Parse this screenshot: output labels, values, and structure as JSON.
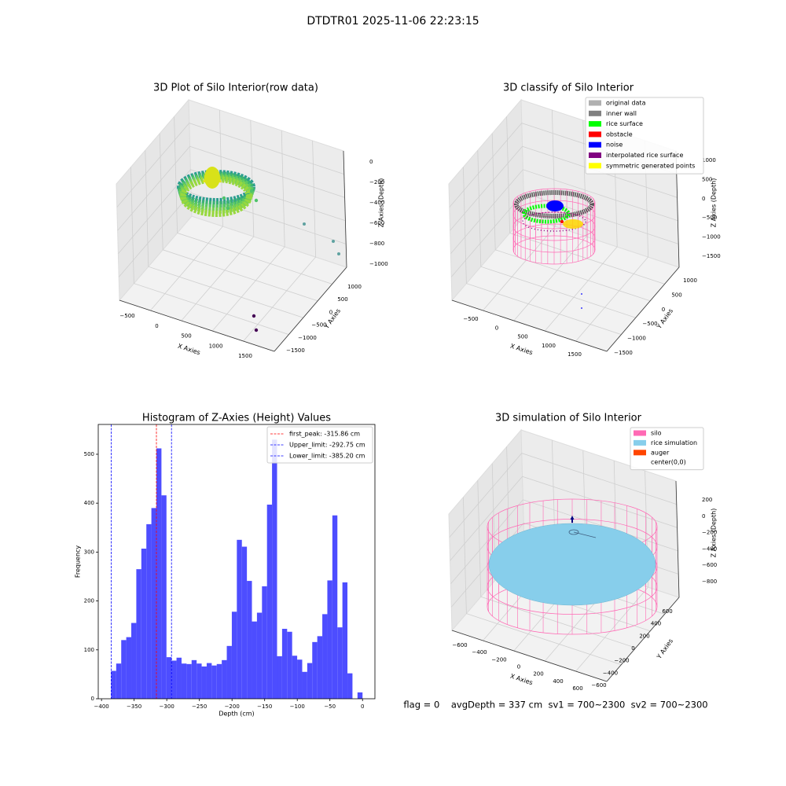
{
  "title": "DTDTR01 2025-11-06 22:23:15",
  "footer": "flag = 0    avgDepth = 337 cm  sv1 = 700~2300  sv2 = 700~2300",
  "chart_data": [
    {
      "type": "scatter3d",
      "title": "3D Plot of Silo Interior(row data)",
      "xlabel": "X Axies",
      "ylabel": "Y Axies",
      "zlabel": "Z Axies (Depth)",
      "xticks": [
        {
          "value": -500,
          "label": "−500"
        },
        0,
        500,
        1000,
        1500
      ],
      "yticks": [
        1000,
        500,
        0,
        {
          "value": -500,
          "label": "−500"
        },
        {
          "value": -1000,
          "label": "−1000"
        },
        {
          "value": -1500,
          "label": "−1500"
        }
      ],
      "zticks": [
        0,
        {
          "value": -200,
          "label": "−200"
        },
        {
          "value": -400,
          "label": "−400"
        },
        {
          "value": -600,
          "label": "−600"
        },
        {
          "value": -800,
          "label": "−800"
        },
        {
          "value": -1000,
          "label": "−1000"
        }
      ]
    },
    {
      "type": "scatter3d",
      "title": "3D classify of Silo Interior",
      "xlabel": "X Axies",
      "ylabel": "Y Axies",
      "zlabel": "Z Axies (Depth)",
      "xticks": [
        {
          "value": -500,
          "label": "−500"
        },
        0,
        500,
        1000,
        1500
      ],
      "yticks": [
        1000,
        500,
        0,
        {
          "value": -500,
          "label": "−500"
        },
        {
          "value": -1000,
          "label": "−1000"
        },
        {
          "value": -1500,
          "label": "−1500"
        }
      ],
      "zticks": [
        1000,
        500,
        0,
        {
          "value": -500,
          "label": "−500"
        },
        {
          "value": -1000,
          "label": "−1000"
        },
        {
          "value": -1500,
          "label": "−1500"
        }
      ],
      "legend": [
        {
          "name": "original data",
          "color": "#b0b0b0"
        },
        {
          "name": "inner wall",
          "color": "#808080"
        },
        {
          "name": "rice surface",
          "color": "#00ff00"
        },
        {
          "name": "obstacle",
          "color": "#ff0000"
        },
        {
          "name": "noise",
          "color": "#0000ff"
        },
        {
          "name": "interpolated rice surface",
          "color": "#800080"
        },
        {
          "name": "symmetric generated points",
          "color": "#ffff00"
        }
      ]
    },
    {
      "type": "histogram",
      "title": "Histogram of Z-Axies (Height) Values",
      "xlabel": "Depth (cm)",
      "ylabel": "Frequency",
      "color": "#4d4dff",
      "bins": [
        -385.2,
        -377.5,
        -369.79,
        -362.09,
        -354.38,
        -346.68,
        -338.98,
        -331.27,
        -323.57,
        -315.86,
        -308.16,
        -300.46,
        -292.75,
        -285.05,
        -277.34,
        -269.64,
        -261.94,
        -254.23,
        -246.53,
        -238.82,
        -231.12,
        -223.42,
        -215.71,
        -208.01,
        -200.3,
        -192.6,
        -184.9,
        -177.19,
        -169.49,
        -161.78,
        -154.08,
        -146.38,
        -138.67,
        -130.97,
        -123.26,
        -115.56,
        -107.86,
        -100.15,
        -92.45,
        -84.74,
        -77.04,
        -69.34,
        -61.63,
        -53.93,
        -46.22,
        -38.52,
        -30.82,
        -23.11,
        -15.41,
        -7.7,
        0
      ],
      "counts": [
        57,
        72,
        120,
        126,
        155,
        265,
        307,
        357,
        390,
        512,
        416,
        85,
        78,
        84,
        72,
        71,
        79,
        72,
        66,
        73,
        68,
        71,
        79,
        108,
        178,
        325,
        311,
        241,
        158,
        176,
        230,
        397,
        530,
        87,
        143,
        137,
        88,
        80,
        55,
        73,
        116,
        128,
        173,
        242,
        375,
        146,
        238,
        52,
        0,
        13
      ],
      "xlim": [
        -405,
        19
      ],
      "ylim": [
        0,
        561
      ],
      "xticks": [
        {
          "value": -400,
          "label": "−400"
        },
        {
          "value": -350,
          "label": "−350"
        },
        {
          "value": -300,
          "label": "−300"
        },
        {
          "value": -250,
          "label": "−250"
        },
        {
          "value": -200,
          "label": "−200"
        },
        {
          "value": -150,
          "label": "−150"
        },
        {
          "value": -100,
          "label": "−100"
        },
        {
          "value": -50,
          "label": "−50"
        },
        0
      ],
      "yticks": [
        0,
        100,
        200,
        300,
        400,
        500
      ],
      "legend": "upper right",
      "vlines": [
        {
          "name": "first_peak: -315.86 cm",
          "value": -315.86,
          "color": "#ff0000"
        },
        {
          "name": "Upper_limit: -292.75 cm",
          "value": -292.75,
          "color": "#0000ff"
        },
        {
          "name": "Lower_limit: -385.20 cm",
          "value": -385.2,
          "color": "#0000ff"
        }
      ]
    },
    {
      "type": "surface3d",
      "title": "3D simulation of Silo Interior",
      "xlabel": "X Axies",
      "ylabel": "Y Axies",
      "zlabel": "Z Axies (Depth)",
      "xticks": [
        {
          "value": -600,
          "label": "−600"
        },
        {
          "value": -400,
          "label": "−400"
        },
        {
          "value": -200,
          "label": "−200"
        },
        0,
        200,
        400,
        600
      ],
      "yticks": [
        600,
        400,
        200,
        0,
        {
          "value": -200,
          "label": "−200"
        },
        {
          "value": -400,
          "label": "−400"
        },
        {
          "value": -600,
          "label": "−600"
        }
      ],
      "zticks": [
        200,
        0,
        {
          "value": -200,
          "label": "−200"
        },
        {
          "value": -400,
          "label": "−400"
        },
        {
          "value": -600,
          "label": "−600"
        },
        {
          "value": -800,
          "label": "−800"
        }
      ],
      "legend": [
        {
          "name": "silo",
          "color": "#ff69b4"
        },
        {
          "name": "rice simulation",
          "color": "#87ceeb"
        },
        {
          "name": "auger",
          "color": "#ff4500"
        },
        {
          "name": "center(0,0)",
          "color": "#ffffff"
        }
      ]
    }
  ]
}
